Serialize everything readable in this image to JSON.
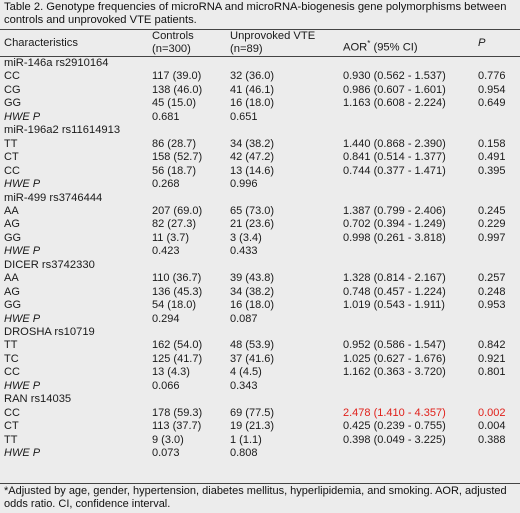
{
  "caption": "Table 2. Genotype frequencies of microRNA and microRNA-biogenesis gene polymorphisms between controls and unprovoked VTE patients.",
  "header": {
    "characteristics": "Characteristics",
    "controls_line1": "Controls",
    "controls_line2": "(n=300)",
    "vte_line1": "Unprovoked VTE",
    "vte_line2": "(n=89)",
    "aor": "AOR",
    "aor_sup": "*",
    "aor_ci": " (95% CI)",
    "p": "P"
  },
  "sections": [
    {
      "title": "miR-146a rs2910164",
      "rows": [
        {
          "g": "CC",
          "controls": "117 (39.0)",
          "vte": "32 (36.0)",
          "aor": "0.930 (0.562 - 1.537)",
          "p": "0.776"
        },
        {
          "g": "CG",
          "controls": "138 (46.0)",
          "vte": "41 (46.1)",
          "aor": "0.986 (0.607 - 1.601)",
          "p": "0.954"
        },
        {
          "g": "GG",
          "controls": "45 (15.0)",
          "vte": "16 (18.0)",
          "aor": "1.163 (0.608 - 2.224)",
          "p": "0.649"
        }
      ],
      "hwe": {
        "label": "HWE P",
        "controls": "0.681",
        "vte": "0.651"
      }
    },
    {
      "title": "miR-196a2 rs11614913",
      "rows": [
        {
          "g": "TT",
          "controls": "86 (28.7)",
          "vte": "34 (38.2)",
          "aor": "1.440 (0.868 - 2.390)",
          "p": "0.158"
        },
        {
          "g": "CT",
          "controls": "158 (52.7)",
          "vte": "42 (47.2)",
          "aor": "0.841 (0.514 - 1.377)",
          "p": "0.491"
        },
        {
          "g": "CC",
          "controls": "56 (18.7)",
          "vte": "13 (14.6)",
          "aor": "0.744 (0.377 - 1.471)",
          "p": "0.395"
        }
      ],
      "hwe": {
        "label": "HWE P",
        "controls": "0.268",
        "vte": "0.996"
      }
    },
    {
      "title": "miR-499 rs3746444",
      "rows": [
        {
          "g": "AA",
          "controls": "207 (69.0)",
          "vte": "65 (73.0)",
          "aor": "1.387 (0.799 - 2.406)",
          "p": "0.245"
        },
        {
          "g": "AG",
          "controls": "82 (27.3)",
          "vte": "21 (23.6)",
          "aor": "0.702 (0.394 - 1.249)",
          "p": "0.229"
        },
        {
          "g": "GG",
          "controls": "11 (3.7)",
          "vte": "3 (3.4)",
          "aor": "0.998 (0.261 - 3.818)",
          "p": "0.997"
        }
      ],
      "hwe": {
        "label": "HWE P",
        "controls": "0.423",
        "vte": "0.433"
      }
    },
    {
      "title": "DICER rs3742330",
      "rows": [
        {
          "g": "AA",
          "controls": "110 (36.7)",
          "vte": "39 (43.8)",
          "aor": "1.328 (0.814 - 2.167)",
          "p": "0.257"
        },
        {
          "g": "AG",
          "controls": "136 (45.3)",
          "vte": "34 (38.2)",
          "aor": "0.748 (0.457 - 1.224)",
          "p": "0.248"
        },
        {
          "g": "GG",
          "controls": "54 (18.0)",
          "vte": "16 (18.0)",
          "aor": "1.019 (0.543 - 1.911)",
          "p": "0.953"
        }
      ],
      "hwe": {
        "label": "HWE P",
        "controls": "0.294",
        "vte": "0.087"
      }
    },
    {
      "title": "DROSHA rs10719",
      "rows": [
        {
          "g": "TT",
          "controls": "162 (54.0)",
          "vte": "48 (53.9)",
          "aor": "0.952 (0.586 - 1.547)",
          "p": "0.842"
        },
        {
          "g": "TC",
          "controls": "125 (41.7)",
          "vte": "37 (41.6)",
          "aor": "1.025 (0.627 - 1.676)",
          "p": "0.921"
        },
        {
          "g": "CC",
          "controls": "13 (4.3)",
          "vte": "4 (4.5)",
          "aor": "1.162 (0.363 - 3.720)",
          "p": "0.801"
        }
      ],
      "hwe": {
        "label": "HWE P",
        "controls": "0.066",
        "vte": "0.343"
      }
    },
    {
      "title": "RAN rs14035",
      "rows": [
        {
          "g": "CC",
          "controls": "178 (59.3)",
          "vte": "69 (77.5)",
          "aor": "2.478 (1.410 - 4.357)",
          "p": "0.002",
          "highlight": true
        },
        {
          "g": "CT",
          "controls": "113 (37.7)",
          "vte": "19 (21.3)",
          "aor": "0.425 (0.239 - 0.755)",
          "p": "0.004"
        },
        {
          "g": "TT",
          "controls": "9 (3.0)",
          "vte": "1 (1.1)",
          "aor": "0.398 (0.049 - 3.225)",
          "p": "0.388"
        }
      ],
      "hwe": {
        "label": "HWE P",
        "controls": "0.073",
        "vte": "0.808"
      }
    }
  ],
  "footnote": "*Adjusted by age, gender, hypertension, diabetes mellitus, hyperlipidemia, and smoking. AOR, adjusted odds ratio. CI, confidence interval.",
  "colors": {
    "highlight": "#e0201a",
    "background": "#ececec"
  }
}
